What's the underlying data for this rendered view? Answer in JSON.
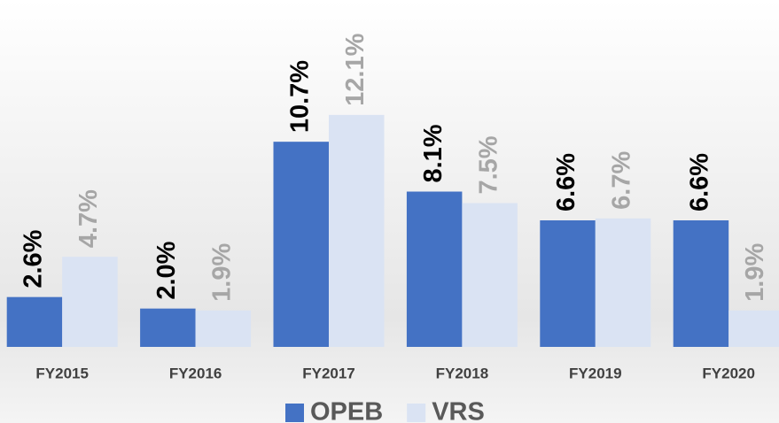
{
  "chart_data": {
    "type": "bar",
    "categories": [
      "FY2015",
      "FY2016",
      "FY2017",
      "FY2018",
      "FY2019",
      "FY2020"
    ],
    "series": [
      {
        "name": "OPEB",
        "color": "#4472c4",
        "label_color": "#000000",
        "values": [
          2.6,
          2.0,
          10.7,
          8.1,
          6.6,
          6.6
        ],
        "value_labels": [
          "2.6%",
          "2.0%",
          "10.7%",
          "8.1%",
          "6.6%",
          "6.6%"
        ]
      },
      {
        "name": "VRS",
        "color": "#dae3f3",
        "label_color": "#a6a6a6",
        "values": [
          4.7,
          1.9,
          12.1,
          7.5,
          6.7,
          1.9
        ],
        "value_labels": [
          "4.7%",
          "1.9%",
          "12.1%",
          "7.5%",
          "6.7%",
          "1.9%"
        ]
      }
    ],
    "ylim": [
      0,
      18
    ],
    "legend": "bottom"
  }
}
